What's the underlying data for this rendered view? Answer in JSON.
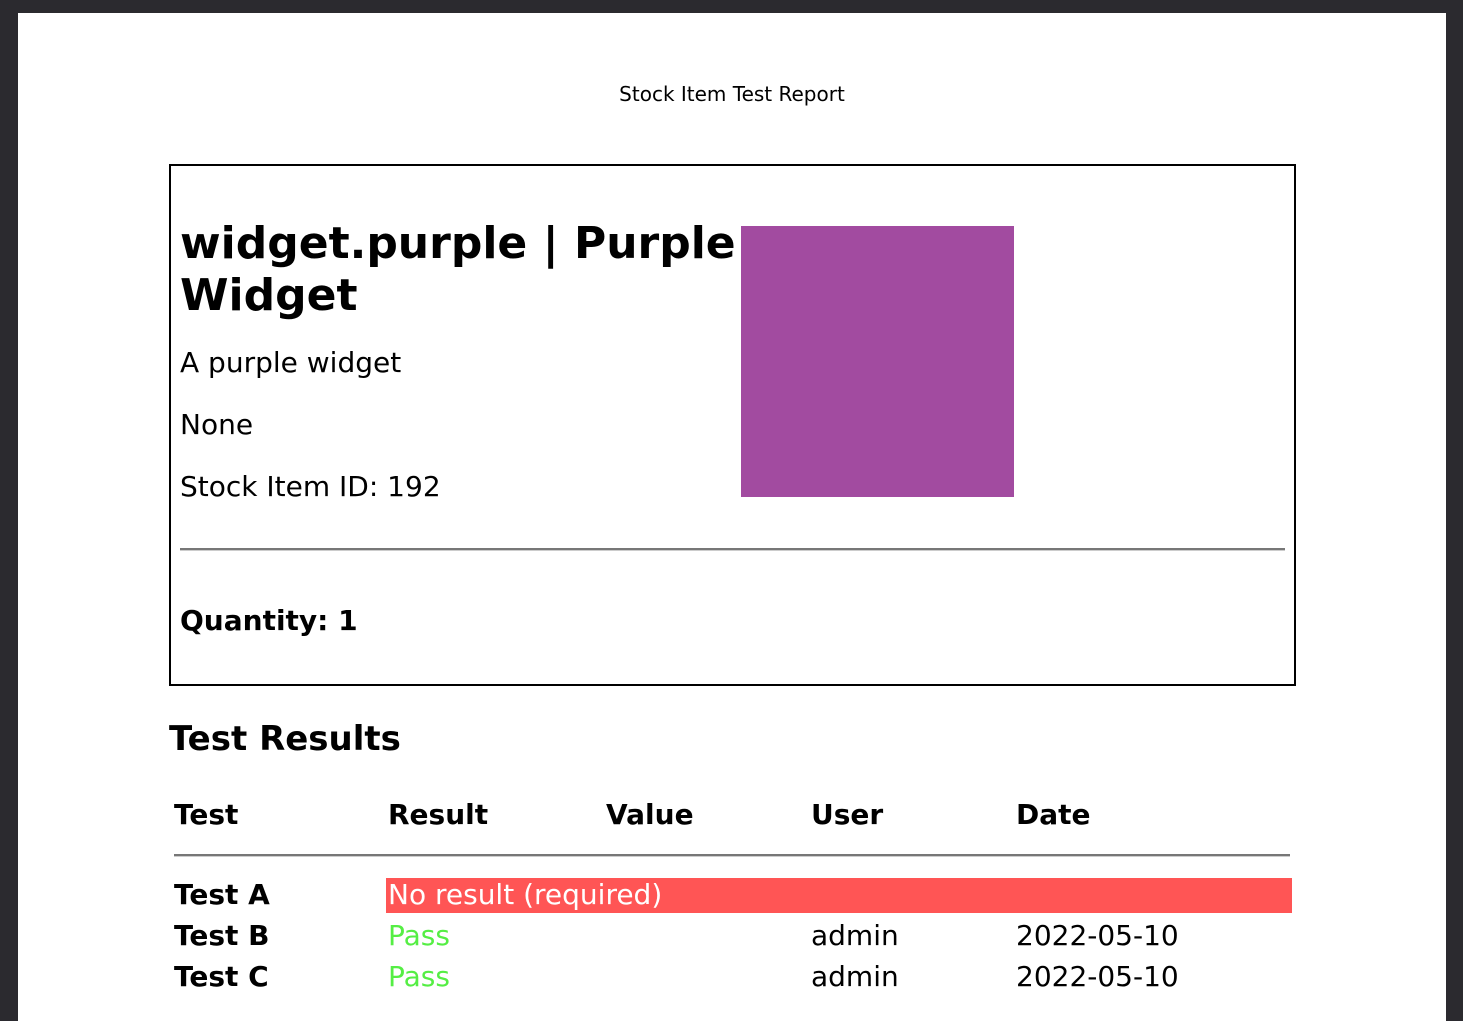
{
  "header": {
    "title": "Stock Item Test Report"
  },
  "item": {
    "heading": "widget.purple | Purple Widget",
    "description": "A purple widget",
    "notes": "None",
    "id_line": "Stock Item ID: 192",
    "quantity": "Quantity: 1"
  },
  "section": {
    "title": "Test Results"
  },
  "table": {
    "columns": [
      "Test",
      "Result",
      "Value",
      "User",
      "Date"
    ],
    "rows": [
      {
        "test": "Test A",
        "result": "No result (required)"
      },
      {
        "test": "Test B",
        "result": "Pass",
        "user": "admin",
        "date": "2022-05-10"
      },
      {
        "test": "Test C",
        "result": "Pass",
        "user": "admin",
        "date": "2022-05-10"
      }
    ]
  }
}
